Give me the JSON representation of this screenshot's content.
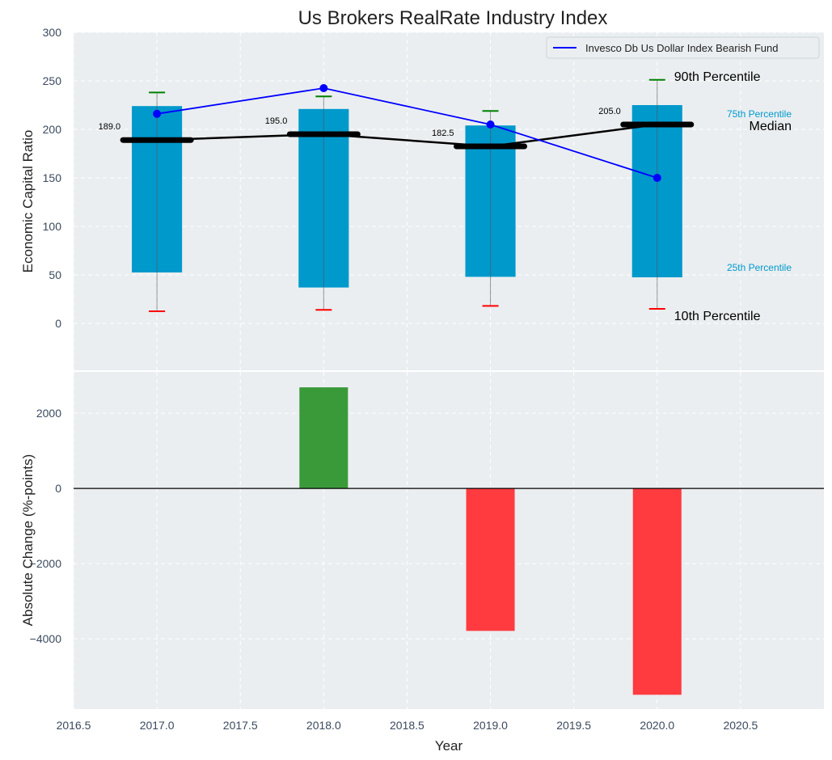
{
  "chart_data": [
    {
      "type": "bar",
      "subtype": "percentile-box",
      "title": "Us Brokers RealRate Industry Index",
      "xlabel": "",
      "ylabel": "Economic Capital Ratio",
      "xlim": [
        2016.5,
        2021.0
      ],
      "ylim": [
        -45,
        300
      ],
      "yticks": [
        0,
        50,
        100,
        150,
        200,
        250,
        300
      ],
      "grid": true,
      "x": [
        2017,
        2018,
        2019,
        2020
      ],
      "p10": [
        12.5,
        14,
        18,
        15
      ],
      "p25": [
        52.5,
        37,
        48,
        47.5
      ],
      "median": [
        189.0,
        195.0,
        182.5,
        205.0
      ],
      "p75": [
        224,
        221,
        204,
        225
      ],
      "p90": [
        238,
        234,
        219,
        251
      ],
      "median_labels": [
        "189.0",
        "195.0",
        "182.5",
        "205.0"
      ],
      "series": [
        {
          "name": "Invesco Db Us Dollar Index Bearish Fund",
          "values": [
            216,
            242.5,
            205,
            150
          ],
          "color": "#0000ff"
        },
        {
          "name": "Median",
          "values": [
            189.0,
            195.0,
            182.5,
            205.0
          ],
          "color": "#000000"
        }
      ],
      "legend": {
        "position": "top-right",
        "entries": [
          "Invesco Db Us Dollar Index Bearish Fund"
        ]
      },
      "annotations": {
        "p90": "90th Percentile",
        "p75": "75th Percentile",
        "median": "Median",
        "p25": "25th Percentile",
        "p10": "10th Percentile"
      },
      "colors": {
        "box": "#0099cc",
        "p90_tick": "#008000",
        "p10_tick": "#ff0000",
        "whisker": "#808080",
        "background": "#eaeef0"
      }
    },
    {
      "type": "bar",
      "title": "",
      "xlabel": "Year",
      "ylabel": "Absolute Change (%-points)",
      "xlim": [
        2016.5,
        2021.0
      ],
      "ylim": [
        -5870,
        3100
      ],
      "xticks": [
        2016.5,
        2017.0,
        2017.5,
        2018.0,
        2018.5,
        2019.0,
        2019.5,
        2020.0,
        2020.5
      ],
      "xtick_labels": [
        "2016.5",
        "2017.0",
        "2017.5",
        "2018.0",
        "2018.5",
        "2019.0",
        "2019.5",
        "2020.0",
        "2020.5"
      ],
      "yticks": [
        -4000,
        -2000,
        0,
        2000
      ],
      "ytick_labels": [
        "−4000",
        "−2000",
        "0",
        "2000"
      ],
      "grid": true,
      "x": [
        2017,
        2018,
        2019,
        2020
      ],
      "values": [
        0,
        2690,
        -3790,
        -5490
      ],
      "colors": {
        "positive": "#3a9a3a",
        "negative": "#ff3b3f",
        "zero_line": "#000000"
      }
    }
  ]
}
